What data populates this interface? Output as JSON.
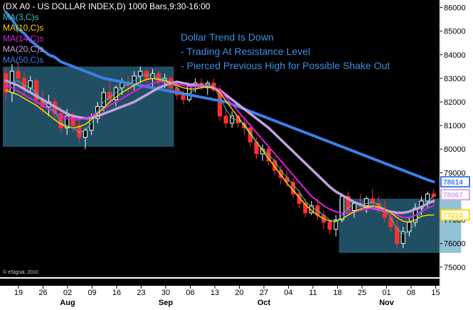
{
  "chart_data": {
    "type": "candlestick",
    "title": "(DX A0 - US DOLLAR INDEX,D) 1000 Bars,9:30-16:00",
    "ylim": [
      74600,
      86200
    ],
    "y_ticks": [
      75000,
      76000,
      77000,
      78000,
      79000,
      80000,
      81000,
      82000,
      83000,
      84000,
      85000,
      86000
    ],
    "x_ticks": [
      "19",
      "26",
      "02",
      "09",
      "16",
      "23",
      "30",
      "06",
      "13",
      "20",
      "27",
      "04",
      "11",
      "18",
      "25",
      "01",
      "08",
      "15"
    ],
    "month_labels": [
      {
        "label": "Aug",
        "tick_index": 2
      },
      {
        "label": "Sep",
        "tick_index": 6
      },
      {
        "label": "Oct",
        "tick_index": 10
      },
      {
        "label": "Nov",
        "tick_index": 15
      }
    ],
    "ma_legend": [
      "MA(3,C)s",
      "MA(10,C)s",
      "MA(14,C)s",
      "MA(20,C)s",
      "MA(50,C)s"
    ],
    "annotations": [
      "Dollar Trend Is Down",
      "- Trading At Resistance Level",
      "- Pierced Previous High for Possible Shake Out"
    ],
    "last_value_labels": [
      {
        "value": "78614",
        "color": "#3d7fe6"
      },
      {
        "value": "78067",
        "color": "#d6a5e6"
      },
      {
        "value": "77210",
        "color": "#ffd700"
      }
    ],
    "copyright": "© eSignal, 2010",
    "colors": {
      "up": "#ffffff",
      "down": "#ff3030",
      "ma3": "#3ac0c0",
      "ma10": "#ffd700",
      "ma14": "#e020e0",
      "ma20": "#c8a0e0",
      "ma50": "#3d7fe6",
      "box": "#3a8fb7"
    },
    "ohlc": [
      [
        83200,
        83400,
        82100,
        82400
      ],
      [
        82400,
        83600,
        82000,
        83300
      ],
      [
        83300,
        83700,
        82800,
        83000
      ],
      [
        83000,
        83300,
        82300,
        82600
      ],
      [
        82600,
        83100,
        82400,
        82900
      ],
      [
        82900,
        83000,
        81900,
        82100
      ],
      [
        82100,
        82500,
        81500,
        81800
      ],
      [
        81800,
        82300,
        81400,
        82000
      ],
      [
        82000,
        82200,
        81200,
        81500
      ],
      [
        81500,
        81800,
        80700,
        80900
      ],
      [
        80900,
        81700,
        80600,
        81400
      ],
      [
        81400,
        81600,
        80700,
        81000
      ],
      [
        81000,
        81200,
        80300,
        80500
      ],
      [
        80500,
        80900,
        80000,
        80800
      ],
      [
        80800,
        81500,
        80600,
        81300
      ],
      [
        81300,
        82000,
        81100,
        81800
      ],
      [
        81800,
        82600,
        81600,
        82400
      ],
      [
        82400,
        82900,
        81900,
        82100
      ],
      [
        82100,
        82700,
        81800,
        82600
      ],
      [
        82600,
        83000,
        82300,
        82800
      ],
      [
        82800,
        83100,
        82400,
        82700
      ],
      [
        82700,
        83300,
        82500,
        83100
      ],
      [
        83100,
        83500,
        82800,
        83300
      ],
      [
        83300,
        83400,
        82800,
        83000
      ],
      [
        83000,
        83400,
        82600,
        83200
      ],
      [
        83200,
        83300,
        82700,
        82900
      ],
      [
        82900,
        83200,
        82600,
        83000
      ],
      [
        83000,
        83100,
        82400,
        82600
      ],
      [
        82600,
        82800,
        82100,
        82300
      ],
      [
        82300,
        82500,
        81900,
        82100
      ],
      [
        82100,
        82800,
        82000,
        82700
      ],
      [
        82700,
        83000,
        82400,
        82800
      ],
      [
        82800,
        83000,
        82500,
        82600
      ],
      [
        82600,
        82900,
        82300,
        82800
      ],
      [
        82800,
        83000,
        82400,
        82500
      ],
      [
        82500,
        82700,
        81200,
        81400
      ],
      [
        81400,
        81700,
        80900,
        81100
      ],
      [
        81100,
        81600,
        80900,
        81400
      ],
      [
        81400,
        81500,
        80900,
        81100
      ],
      [
        81100,
        81300,
        80600,
        80900
      ],
      [
        80900,
        81100,
        80100,
        80300
      ],
      [
        80300,
        80500,
        79600,
        79800
      ],
      [
        79800,
        80200,
        79500,
        80000
      ],
      [
        80000,
        80100,
        79300,
        79500
      ],
      [
        79500,
        79700,
        78900,
        79100
      ],
      [
        79100,
        79300,
        78500,
        78800
      ],
      [
        78800,
        79100,
        78400,
        78600
      ],
      [
        78600,
        78800,
        77900,
        78100
      ],
      [
        78100,
        78300,
        77500,
        77700
      ],
      [
        77700,
        77900,
        77100,
        77300
      ],
      [
        77300,
        77800,
        77200,
        77600
      ],
      [
        77600,
        77900,
        77000,
        77200
      ],
      [
        77200,
        77400,
        76600,
        76900
      ],
      [
        76900,
        77000,
        76400,
        76600
      ],
      [
        76600,
        77200,
        76300,
        77000
      ],
      [
        77000,
        78100,
        76900,
        78000
      ],
      [
        78000,
        78200,
        77200,
        77400
      ],
      [
        77400,
        77800,
        77100,
        77700
      ],
      [
        77700,
        78100,
        77400,
        77600
      ],
      [
        77600,
        78000,
        77300,
        77900
      ],
      [
        77900,
        78300,
        77500,
        77700
      ],
      [
        77700,
        78000,
        77300,
        77500
      ],
      [
        77500,
        77800,
        76900,
        77100
      ],
      [
        77100,
        77300,
        76500,
        76700
      ],
      [
        76700,
        77000,
        75800,
        76000
      ],
      [
        76000,
        76700,
        75800,
        76500
      ],
      [
        76500,
        77100,
        76300,
        76900
      ],
      [
        76900,
        77700,
        76700,
        77500
      ],
      [
        77500,
        78000,
        77200,
        77800
      ],
      [
        77800,
        78200,
        77500,
        78100
      ],
      [
        78100,
        78300,
        77600,
        78000
      ]
    ],
    "ma50": [
      85800,
      85500,
      85100,
      84900,
      84600,
      84400,
      84200,
      84000,
      83900,
      83700,
      83600,
      83500,
      83400,
      83300,
      83200,
      83100,
      83000,
      82950,
      82900,
      82850,
      82800,
      82750,
      82700,
      82650,
      82600,
      82550,
      82500,
      82450,
      82400,
      82350,
      82300,
      82250,
      82200,
      82150,
      82100,
      82050,
      82000,
      81900,
      81800,
      81700,
      81600,
      81500,
      81400,
      81300,
      81200,
      81100,
      81000,
      80900,
      80800,
      80700,
      80600,
      80500,
      80400,
      80300,
      80200,
      80100,
      80000,
      79900,
      79800,
      79700,
      79600,
      79500,
      79400,
      79300,
      79200,
      79100,
      79000,
      78900,
      78800,
      78700,
      78614
    ],
    "ma20": [
      82900,
      82800,
      82700,
      82550,
      82400,
      82250,
      82100,
      81950,
      81800,
      81650,
      81500,
      81400,
      81350,
      81300,
      81350,
      81400,
      81500,
      81600,
      81700,
      81800,
      81900,
      82000,
      82150,
      82300,
      82450,
      82600,
      82700,
      82800,
      82850,
      82800,
      82750,
      82700,
      82700,
      82650,
      82600,
      82500,
      82300,
      82100,
      81900,
      81700,
      81500,
      81300,
      81100,
      80900,
      80650,
      80400,
      80150,
      79900,
      79650,
      79400,
      79150,
      78900,
      78650,
      78400,
      78200,
      78050,
      77900,
      77750,
      77650,
      77550,
      77500,
      77450,
      77400,
      77350,
      77300,
      77300,
      77350,
      77450,
      77550,
      77700,
      77800
    ],
    "ma14": [
      82700,
      82600,
      82450,
      82300,
      82150,
      82000,
      81850,
      81700,
      81550,
      81400,
      81300,
      81250,
      81250,
      81300,
      81400,
      81550,
      81700,
      81850,
      82000,
      82150,
      82300,
      82450,
      82600,
      82700,
      82800,
      82850,
      82850,
      82800,
      82750,
      82700,
      82650,
      82650,
      82700,
      82700,
      82650,
      82500,
      82200,
      81900,
      81600,
      81300,
      81000,
      80700,
      80400,
      80100,
      79800,
      79500,
      79200,
      78900,
      78600,
      78300,
      78000,
      77800,
      77600,
      77450,
      77350,
      77300,
      77300,
      77350,
      77400,
      77450,
      77500,
      77450,
      77400,
      77300,
      77200,
      77100,
      77100,
      77200,
      77350,
      77500,
      77600
    ],
    "ma10": [
      82500,
      82400,
      82300,
      82150,
      82000,
      81850,
      81650,
      81450,
      81250,
      81050,
      80950,
      80900,
      80950,
      81050,
      81250,
      81500,
      81750,
      82000,
      82200,
      82400,
      82550,
      82700,
      82850,
      82950,
      83000,
      82950,
      82900,
      82800,
      82700,
      82600,
      82550,
      82550,
      82600,
      82650,
      82600,
      82400,
      82050,
      81700,
      81350,
      81000,
      80650,
      80300,
      79950,
      79600,
      79250,
      78900,
      78550,
      78250,
      77950,
      77650,
      77400,
      77200,
      77050,
      76950,
      76950,
      77050,
      77200,
      77350,
      77450,
      77550,
      77600,
      77550,
      77450,
      77300,
      77100,
      76950,
      76900,
      77000,
      77150,
      77200,
      77210
    ],
    "ma3": [
      82900,
      82800,
      82900,
      82700,
      82600,
      82400,
      82000,
      81800,
      81600,
      81100,
      81000,
      80900,
      80700,
      80800,
      81100,
      81600,
      82000,
      82200,
      82400,
      82600,
      82750,
      82900,
      83100,
      83150,
      83100,
      83000,
      82950,
      82850,
      82600,
      82350,
      82350,
      82550,
      82700,
      82750,
      82650,
      82200,
      81700,
      81300,
      81200,
      81100,
      80700,
      80300,
      80000,
      79750,
      79500,
      79100,
      78800,
      78500,
      78200,
      77800,
      77550,
      77400,
      77200,
      77000,
      76900,
      77200,
      77500,
      77700,
      77600,
      77700,
      77750,
      77650,
      77450,
      77100,
      76600,
      76400,
      76500,
      76900,
      77400,
      77800,
      78000
    ],
    "boxes": [
      {
        "x_start": 0,
        "x_end": 27,
        "y_low": 80100,
        "y_high": 83500
      },
      {
        "x_start": 55,
        "x_end": 74,
        "y_low": 75600,
        "y_high": 77900
      }
    ]
  }
}
